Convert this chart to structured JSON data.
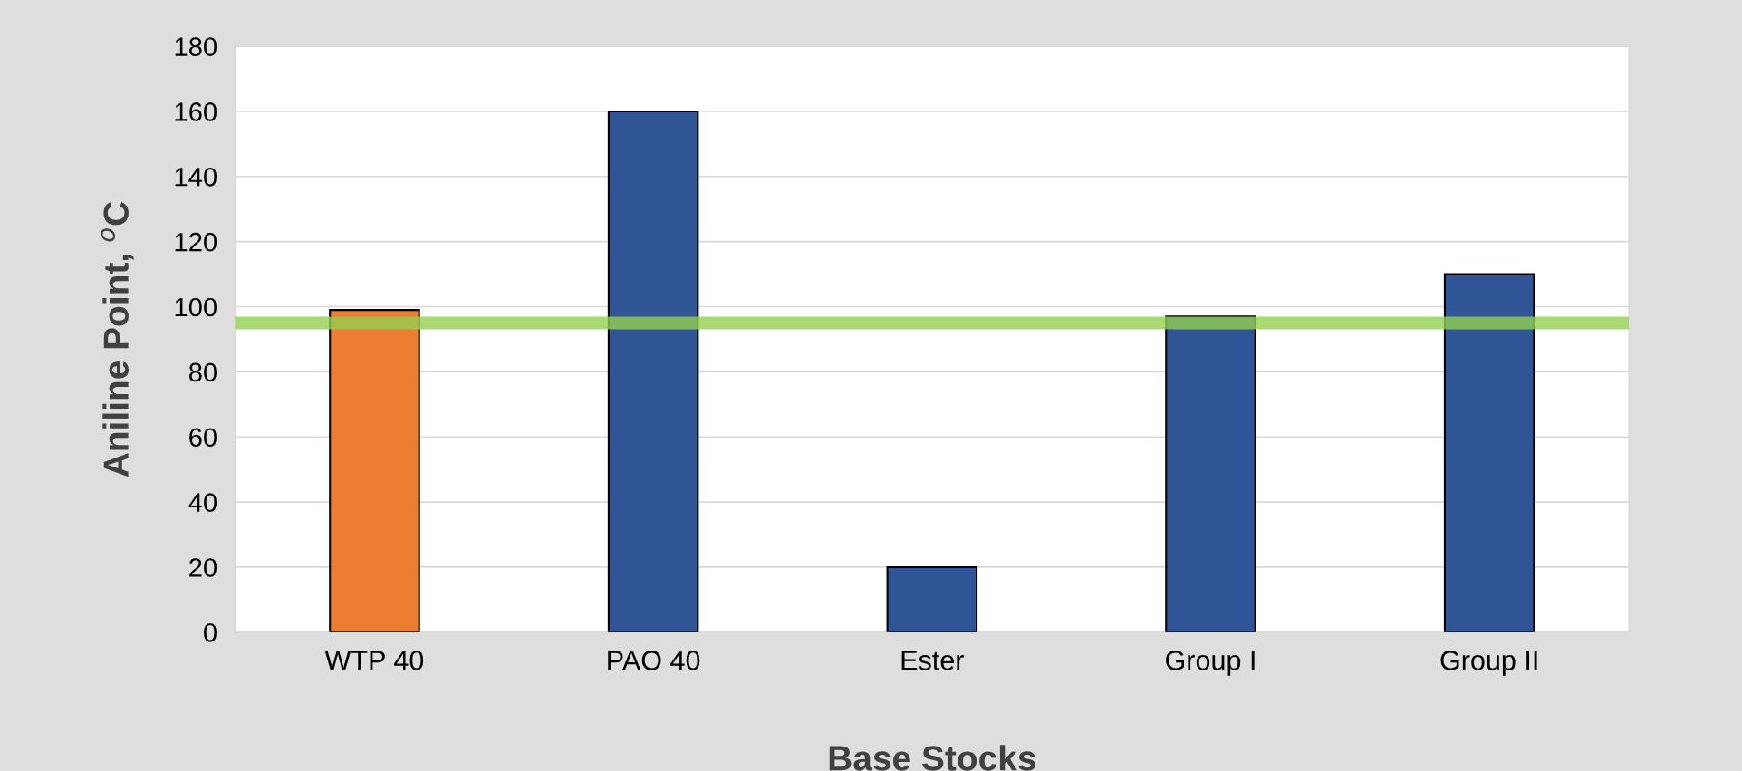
{
  "chart_data": {
    "type": "bar",
    "xlabel": "Base Stocks",
    "ylabel": "Aniline Point, $^{o}$C",
    "categories": [
      "WTP 40",
      "PAO 40",
      "Ester",
      "Group I",
      "Group II"
    ],
    "values": [
      99,
      160,
      20,
      97,
      110
    ],
    "colors": [
      "#ed7d31",
      "#2f5597",
      "#2f5597",
      "#2f5597",
      "#2f5597"
    ],
    "ylim": [
      0,
      180
    ],
    "yticks": [
      0,
      20,
      40,
      60,
      80,
      100,
      120,
      140,
      160,
      180
    ],
    "grid": "y",
    "ref_lines": [
      {
        "axis": "y",
        "value": 95,
        "color": "#92d050",
        "line_style": "solid"
      }
    ]
  }
}
